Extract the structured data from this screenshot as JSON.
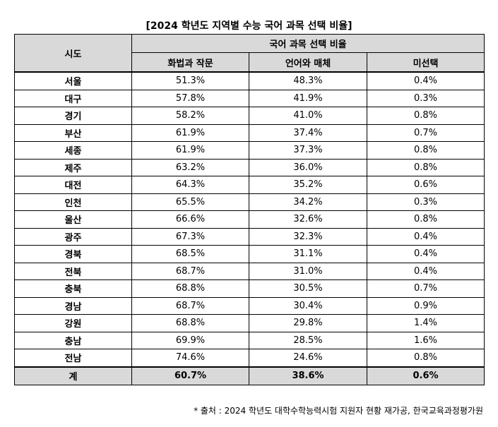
{
  "title": "[2024 학년도  지역별 수능 국어 과목 선택 비율]",
  "table": {
    "region_header": "시도",
    "group_header": "국어 과목 선택 비율",
    "columns": [
      "화법과 작문",
      "언어와 매체",
      "미선택"
    ],
    "rows": [
      {
        "region": "서울",
        "a": "51.3%",
        "b": "48.3%",
        "c": "0.4%"
      },
      {
        "region": "대구",
        "a": "57.8%",
        "b": "41.9%",
        "c": "0.3%"
      },
      {
        "region": "경기",
        "a": "58.2%",
        "b": "41.0%",
        "c": "0.8%"
      },
      {
        "region": "부산",
        "a": "61.9%",
        "b": "37.4%",
        "c": "0.7%"
      },
      {
        "region": "세종",
        "a": "61.9%",
        "b": "37.3%",
        "c": "0.8%"
      },
      {
        "region": "제주",
        "a": "63.2%",
        "b": "36.0%",
        "c": "0.8%"
      },
      {
        "region": "대전",
        "a": "64.3%",
        "b": "35.2%",
        "c": "0.6%"
      },
      {
        "region": "인천",
        "a": "65.5%",
        "b": "34.2%",
        "c": "0.3%"
      },
      {
        "region": "울산",
        "a": "66.6%",
        "b": "32.6%",
        "c": "0.8%"
      },
      {
        "region": "광주",
        "a": "67.3%",
        "b": "32.3%",
        "c": "0.4%"
      },
      {
        "region": "경북",
        "a": "68.5%",
        "b": "31.1%",
        "c": "0.4%"
      },
      {
        "region": "전북",
        "a": "68.7%",
        "b": "31.0%",
        "c": "0.4%"
      },
      {
        "region": "충북",
        "a": "68.8%",
        "b": "30.5%",
        "c": "0.7%"
      },
      {
        "region": "경남",
        "a": "68.7%",
        "b": "30.4%",
        "c": "0.9%"
      },
      {
        "region": "강원",
        "a": "68.8%",
        "b": "29.8%",
        "c": "1.4%"
      },
      {
        "region": "충남",
        "a": "69.9%",
        "b": "28.5%",
        "c": "1.6%"
      },
      {
        "region": "전남",
        "a": "74.6%",
        "b": "24.6%",
        "c": "0.8%"
      }
    ],
    "total": {
      "region": "계",
      "a": "60.7%",
      "b": "38.6%",
      "c": "0.6%"
    }
  },
  "footnote": "* 출처 : 2024 학년도 대학수학능력시험 지원자 현황 재가공, 한국교육과정평가원",
  "colors": {
    "header_bg": "#d9d9d9",
    "border": "#000000"
  }
}
